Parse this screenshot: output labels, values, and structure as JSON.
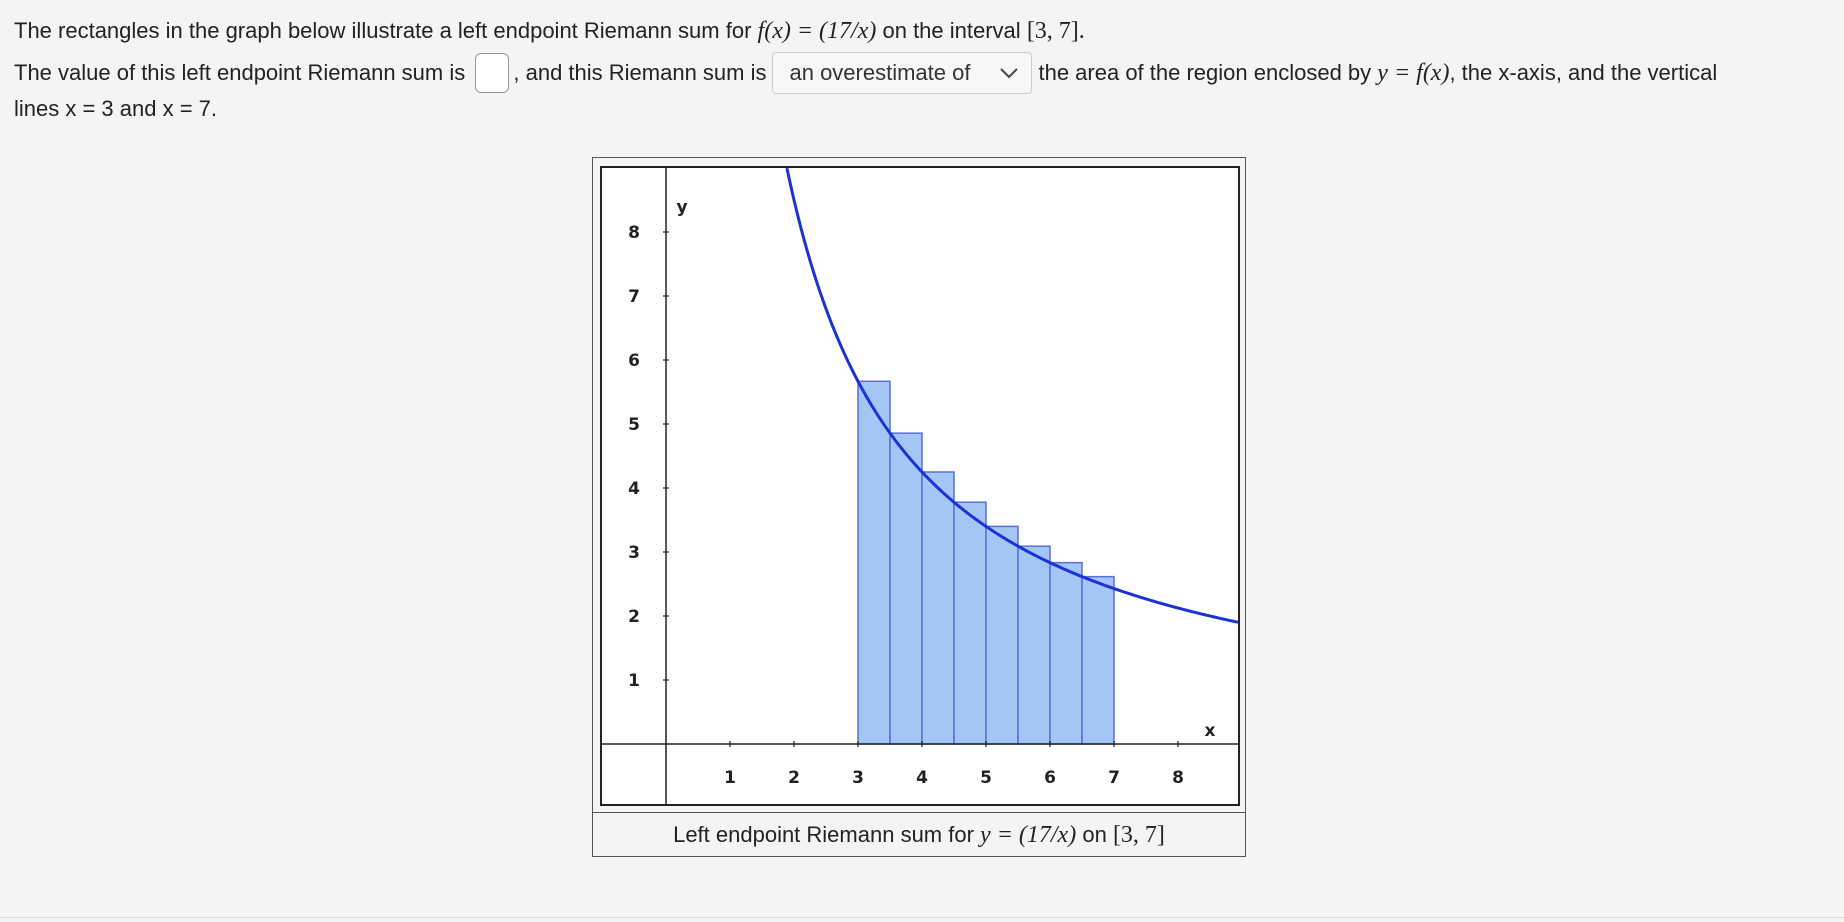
{
  "question": {
    "line1_prefix": "The rectangles in the graph below illustrate a left endpoint Riemann sum for",
    "line1_func": "f(x) = (17/x)",
    "line1_mid": "on the interval",
    "line1_interval": "[3, 7].",
    "line2_prefix": "The value of this left endpoint Riemann sum is",
    "line2_mid": ", and this Riemann sum is",
    "line2_after": "the area of the region enclosed by",
    "line2_func": "y = f(x)",
    "line2_end": ", the x-axis, and the vertical",
    "line3": "lines x = 3 and x = 7."
  },
  "answer_input": {
    "value": ""
  },
  "select": {
    "selected": "an overestimate of"
  },
  "caption": {
    "prefix": "Left endpoint Riemann sum for",
    "func": "y = (17/x)",
    "mid": "on",
    "interval": "[3, 7]"
  },
  "chart_data": {
    "type": "line",
    "function": "17/x",
    "xlabel": "x",
    "ylabel": "y",
    "xlim": [
      -1,
      9
    ],
    "ylim": [
      -1,
      9
    ],
    "x_ticks": [
      1,
      2,
      3,
      4,
      5,
      6,
      7,
      8
    ],
    "y_ticks": [
      1,
      2,
      3,
      4,
      5,
      6,
      7,
      8
    ],
    "rectangles": [
      {
        "x0": 3.0,
        "x1": 3.5,
        "height": 5.667
      },
      {
        "x0": 3.5,
        "x1": 4.0,
        "height": 4.857
      },
      {
        "x0": 4.0,
        "x1": 4.5,
        "height": 4.25
      },
      {
        "x0": 4.5,
        "x1": 5.0,
        "height": 3.778
      },
      {
        "x0": 5.0,
        "x1": 5.5,
        "height": 3.4
      },
      {
        "x0": 5.5,
        "x1": 6.0,
        "height": 3.091
      },
      {
        "x0": 6.0,
        "x1": 6.5,
        "height": 2.833
      },
      {
        "x0": 6.5,
        "x1": 7.0,
        "height": 2.615
      }
    ],
    "colors": {
      "curve": "#1a33d6",
      "rect_fill": "#a3c6f7",
      "rect_stroke": "#5a6fd8"
    }
  }
}
